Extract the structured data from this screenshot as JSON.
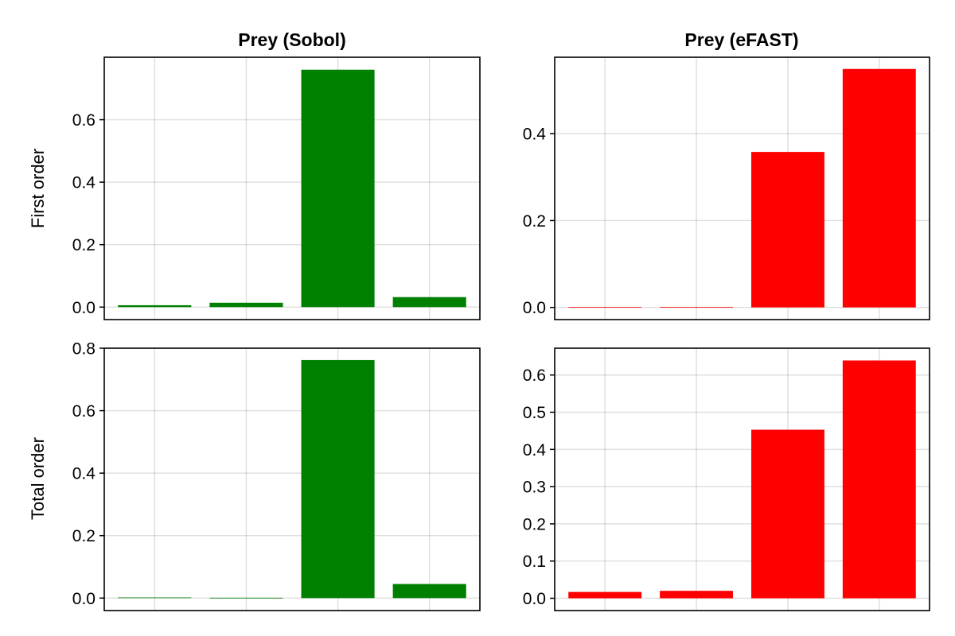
{
  "figure": {
    "column_titles": [
      "Prey (Sobol)",
      "Prey (eFAST)"
    ],
    "row_labels": [
      "First order",
      "Total order"
    ]
  },
  "chart_data": [
    {
      "type": "bar",
      "title": "Prey (Sobol)",
      "ylabel": "First order",
      "values": [
        0.006,
        0.014,
        0.76,
        0.032
      ],
      "color": "#008000",
      "ylim": [
        -0.04,
        0.8
      ],
      "yticks": [
        0.0,
        0.2,
        0.4,
        0.6
      ],
      "ytick_labels": [
        "0.0",
        "0.2",
        "0.4",
        "0.6"
      ],
      "grid": true
    },
    {
      "type": "bar",
      "title": "Prey (eFAST)",
      "ylabel": "",
      "values": [
        0.001,
        0.001,
        0.358,
        0.549
      ],
      "color": "#ff0000",
      "ylim": [
        -0.028,
        0.576
      ],
      "yticks": [
        0.0,
        0.2,
        0.4
      ],
      "ytick_labels": [
        "0.0",
        "0.2",
        "0.4"
      ],
      "grid": true
    },
    {
      "type": "bar",
      "title": "",
      "ylabel": "Total order",
      "values": [
        0.002,
        0.001,
        0.762,
        0.045
      ],
      "color": "#008000",
      "ylim": [
        -0.04,
        0.8
      ],
      "yticks": [
        0.0,
        0.2,
        0.4,
        0.6,
        0.8
      ],
      "ytick_labels": [
        "0.0",
        "0.2",
        "0.4",
        "0.6",
        "0.8"
      ],
      "grid": true
    },
    {
      "type": "bar",
      "title": "",
      "ylabel": "",
      "values": [
        0.017,
        0.02,
        0.453,
        0.639
      ],
      "color": "#ff0000",
      "ylim": [
        -0.033,
        0.672
      ],
      "yticks": [
        0.0,
        0.1,
        0.2,
        0.3,
        0.4,
        0.5,
        0.6
      ],
      "ytick_labels": [
        "0.0",
        "0.1",
        "0.2",
        "0.3",
        "0.4",
        "0.5",
        "0.6"
      ],
      "grid": true
    }
  ]
}
